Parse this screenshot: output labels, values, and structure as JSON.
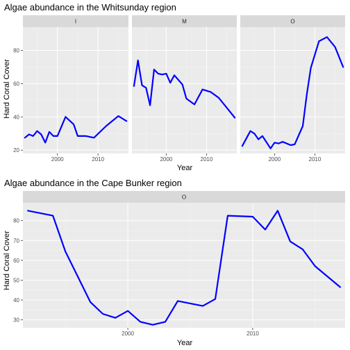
{
  "chart_data": [
    {
      "type": "line",
      "title": "Algae abundance in the Whitsunday region",
      "xlabel": "Year",
      "ylabel": "Hard Coral Cover",
      "facet": true,
      "line_color": "#0000ff",
      "panel_bg": "#ebebeb",
      "strip_bg": "#d9d9d9",
      "xlim": [
        1991.5,
        2017.5
      ],
      "ylim": [
        18,
        94
      ],
      "x_ticks": [
        2000,
        2010
      ],
      "y_ticks": [
        20,
        40,
        60,
        80
      ],
      "panels": [
        {
          "label": "I",
          "x": [
            1992,
            1993,
            1994,
            1995,
            1996,
            1997,
            1998,
            1999,
            2000,
            2002,
            2004,
            2005,
            2007,
            2009,
            2012,
            2015,
            2017
          ],
          "y": [
            27.5,
            29.5,
            28.5,
            31.5,
            29.5,
            24.5,
            31.0,
            28.5,
            28.5,
            40.0,
            35.5,
            28.5,
            28.5,
            27.5,
            34.5,
            40.5,
            37.5
          ]
        },
        {
          "label": "M",
          "x": [
            1992,
            1993,
            1994,
            1995,
            1996,
            1997,
            1998,
            1999,
            2000,
            2001,
            2002,
            2004,
            2005,
            2007,
            2009,
            2011,
            2013,
            2015,
            2017
          ],
          "y": [
            58.5,
            74.0,
            59.0,
            57.5,
            47.0,
            68.5,
            66.0,
            65.5,
            66.0,
            60.5,
            65.0,
            59.5,
            51.0,
            47.5,
            56.5,
            55.0,
            51.5,
            45.5,
            39.5
          ]
        },
        {
          "label": "O",
          "x": [
            1992,
            1994,
            1995,
            1996,
            1997,
            1999,
            2000,
            2001,
            2002,
            2004,
            2005,
            2007,
            2008,
            2009,
            2011,
            2013,
            2015,
            2017
          ],
          "y": [
            22.5,
            31.5,
            30.0,
            26.5,
            28.5,
            21.0,
            24.5,
            24.0,
            25.0,
            23.0,
            23.5,
            34.5,
            53.5,
            69.5,
            85.5,
            88.0,
            82.0,
            70.0
          ]
        }
      ]
    },
    {
      "type": "line",
      "title": "Algae abundance in the Cape Bunker region",
      "xlabel": "Year",
      "ylabel": "Hard Coral Cover",
      "facet": true,
      "line_color": "#0000ff",
      "panel_bg": "#ebebeb",
      "strip_bg": "#d9d9d9",
      "xlim": [
        1991.6,
        2017.4
      ],
      "ylim": [
        26,
        89
      ],
      "x_ticks": [
        2000,
        2010
      ],
      "y_ticks": [
        30,
        40,
        50,
        60,
        70,
        80
      ],
      "panels": [
        {
          "label": "O",
          "x": [
            1992,
            1994,
            1995,
            1997,
            1998,
            1999,
            2000,
            2001,
            2002,
            2003,
            2004,
            2006,
            2007,
            2008,
            2010,
            2011,
            2012,
            2013,
            2014,
            2015,
            2017
          ],
          "y": [
            85.0,
            82.5,
            64.5,
            39.0,
            33.0,
            31.0,
            34.5,
            29.0,
            27.5,
            29.0,
            39.5,
            37.0,
            40.5,
            82.5,
            82.0,
            75.5,
            85.0,
            69.5,
            65.5,
            57.0,
            46.5
          ]
        }
      ]
    }
  ]
}
